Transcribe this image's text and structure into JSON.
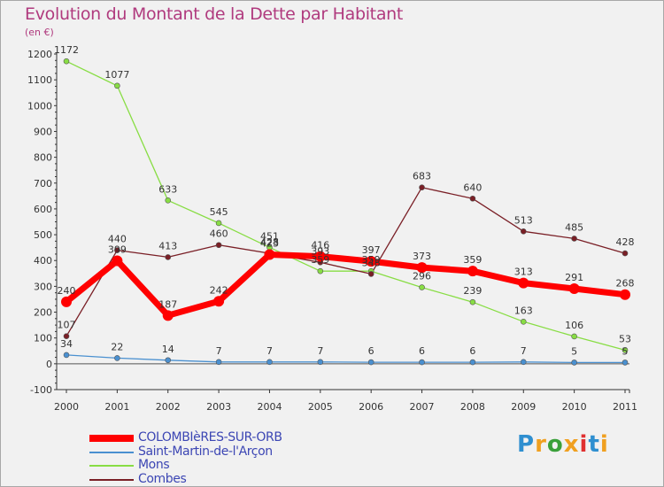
{
  "title": "Evolution du Montant de la Dette par Habitant",
  "unit": "(en €)",
  "logo": {
    "text": "Proxiti",
    "colors": [
      "#2f8fd0",
      "#f0a020",
      "#3aa03a",
      "#f0a020",
      "#e03030",
      "#2f8fd0",
      "#f0a020"
    ]
  },
  "chart_data": {
    "type": "line",
    "x": [
      "2000",
      "2001",
      "2002",
      "2003",
      "2004",
      "2005",
      "2006",
      "2007",
      "2008",
      "2009",
      "2010",
      "2011"
    ],
    "ylim": [
      -100,
      1200
    ],
    "yticks": [
      -100,
      0,
      100,
      200,
      300,
      400,
      500,
      600,
      700,
      800,
      900,
      1000,
      1100,
      1200
    ],
    "grid": false,
    "legend_position": "bottom-left",
    "series": [
      {
        "name": "COLOMBIèRES-SUR-ORB",
        "color": "#ff0000",
        "values": [
          240,
          399,
          187,
          242,
          423,
          416,
          397,
          373,
          359,
          313,
          291,
          268
        ]
      },
      {
        "name": "Saint-Martin-de-l'Arçon",
        "color": "#4a90d0",
        "values": [
          34,
          22,
          14,
          7,
          7,
          7,
          6,
          6,
          6,
          7,
          5,
          5
        ]
      },
      {
        "name": "Mons",
        "color": "#88dd44",
        "values": [
          1172,
          1077,
          633,
          545,
          451,
          359,
          359,
          296,
          239,
          163,
          106,
          53
        ]
      },
      {
        "name": "Combes",
        "color": "#7a1f26",
        "values": [
          107,
          440,
          413,
          460,
          428,
          393,
          348,
          683,
          640,
          513,
          485,
          428
        ]
      }
    ],
    "data_labels": [
      [
        "240",
        "399",
        "187",
        "242",
        "423",
        "416",
        "397",
        "373",
        "359",
        "313",
        "291",
        "268"
      ],
      [
        "34",
        "22",
        "14",
        "7",
        "7",
        "7",
        "6",
        "6",
        "6",
        "7",
        "5",
        "5"
      ],
      [
        "1172",
        "1077",
        "633",
        "545",
        "451",
        "359",
        "359",
        "296",
        "239",
        "163",
        "106",
        "53"
      ],
      [
        "107",
        "440",
        "413",
        "460",
        "428",
        "393",
        "348",
        "683",
        "640",
        "513",
        "485",
        "428"
      ]
    ]
  }
}
